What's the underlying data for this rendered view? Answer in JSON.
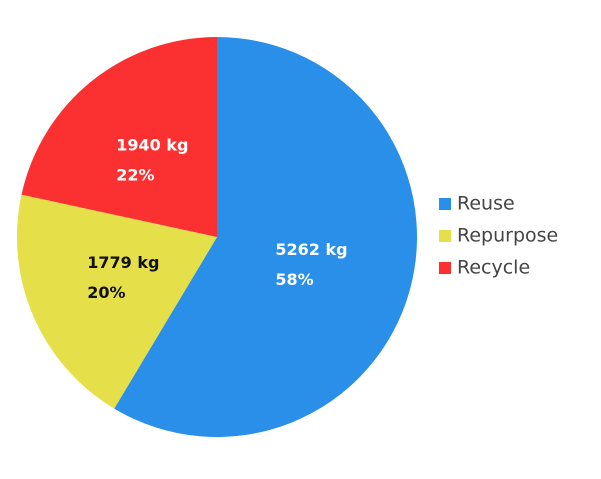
{
  "chart_data": {
    "type": "pie",
    "categories": [
      "Reuse",
      "Repurpose",
      "Recycle"
    ],
    "values": [
      5262,
      1779,
      1940
    ],
    "value_labels": [
      "5262 kg",
      "1779 kg",
      "1940 kg"
    ],
    "percent_labels": [
      "58%",
      "20%",
      "22%"
    ],
    "colors": [
      "#2a8fe8",
      "#e5e04a",
      "#fb3131"
    ],
    "label_colors": [
      "#ffffff",
      "#111111",
      "#ffffff"
    ],
    "legend": "right"
  }
}
